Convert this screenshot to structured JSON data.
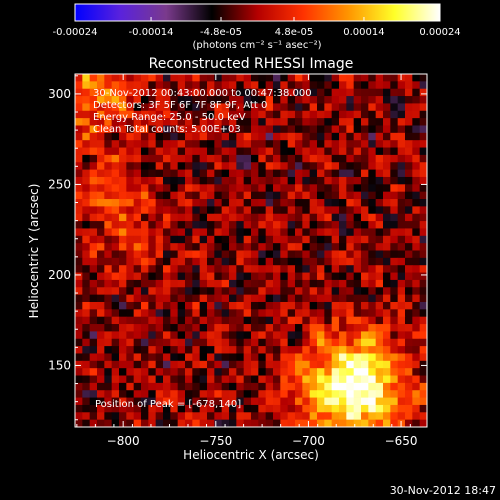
{
  "chart_data": {
    "type": "heatmap",
    "title": "Reconstructed RHESSI Image",
    "xlabel": "Heliocentric X (arcsec)",
    "ylabel": "Heliocentric Y (arcsec)",
    "xlim": [
      -826,
      -636
    ],
    "ylim": [
      116,
      311
    ],
    "xticks": [
      -800,
      -750,
      -700,
      -650
    ],
    "yticks": [
      150,
      200,
      250,
      300
    ],
    "colorbar": {
      "ticks": [
        -0.00024,
        -0.00014,
        -4.8e-05,
        4.8e-05,
        0.00014,
        0.00024
      ],
      "tick_labels": [
        "-0.00024",
        "-0.00014",
        "-4.8e-05",
        "4.8e-05",
        "0.00014",
        "0.00024"
      ],
      "range": [
        -0.00024,
        0.00024
      ],
      "units_label": "(photons cm⁻² s⁻¹ asec⁻²)",
      "colormap": [
        "#0000ff",
        "#5a22dc",
        "#7a3a8c",
        "#000000",
        "#b40000",
        "#ff3200",
        "#ff9600",
        "#ffff28",
        "#ffffff"
      ]
    },
    "annotations": [
      "30-Nov-2012 00:43:00.000 to 00:47:38.000",
      "Detectors: 3F 5F 6F 7F 8F 9F, Att 0",
      "Energy Range: 25.0 - 50.0 keV",
      "Clean     Total counts: 5.00E+03"
    ],
    "peak_label": "Position of Peak = [-678,140]",
    "peak_position": [
      -678,
      140
    ],
    "map": {
      "nx": 48,
      "ny": 48,
      "background_level": -2e-05,
      "sources": [
        {
          "x": -676,
          "y": 138,
          "amp": 0.00026,
          "sigma": 20
        },
        {
          "x": -818,
          "y": 300,
          "amp": 0.00012,
          "sigma": 18
        },
        {
          "x": -805,
          "y": 245,
          "amp": 8e-05,
          "sigma": 14
        },
        {
          "x": -795,
          "y": 215,
          "amp": 7e-05,
          "sigma": 12
        }
      ]
    }
  },
  "footer": {
    "timestamp": "30-Nov-2012 18:47"
  }
}
